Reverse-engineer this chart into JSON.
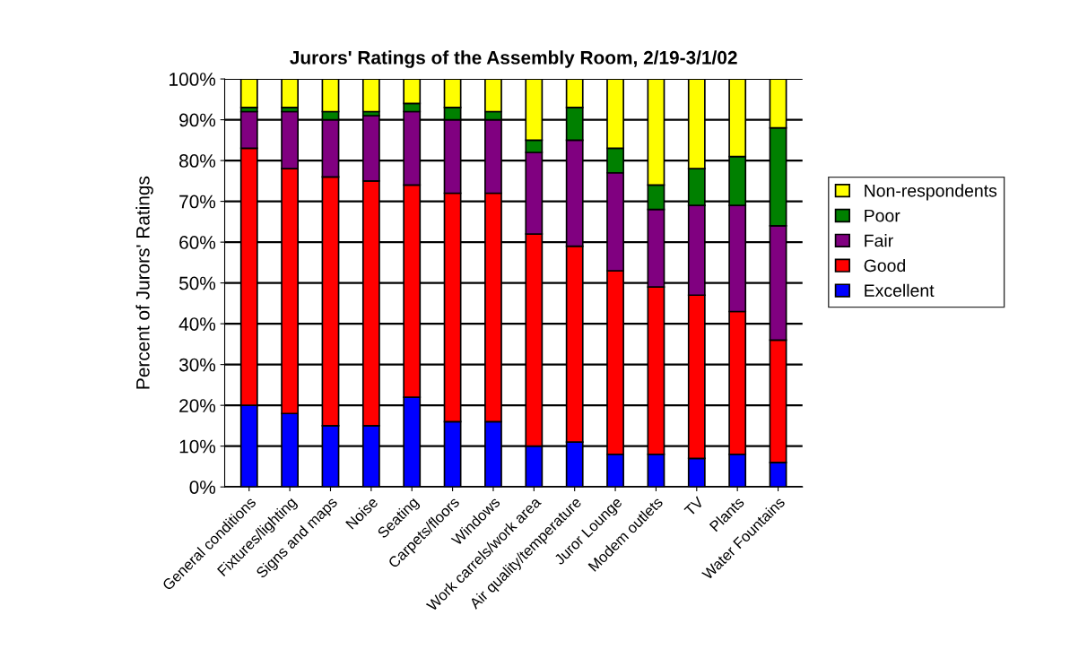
{
  "chart_data": {
    "type": "bar",
    "stacked": true,
    "title": "Jurors' Ratings of the Assembly Room, 2/19-3/1/02",
    "ylabel": "Percent of Jurors' Ratings",
    "categories": [
      "General conditions",
      "Fixtures/lighting",
      "Signs and maps",
      "Noise",
      "Seating",
      "Carpets/floors",
      "Windows",
      "Work carrels/work area",
      "Air quality/temperature",
      "Juror Lounge",
      "Modem outlets",
      "TV",
      "Plants",
      "Water Fountains"
    ],
    "series": [
      {
        "name": "Excellent",
        "color": "#0000ff",
        "values": [
          20,
          18,
          15,
          15,
          22,
          16,
          16,
          10,
          11,
          8,
          8,
          7,
          8,
          6
        ]
      },
      {
        "name": "Good",
        "color": "#ff0000",
        "values": [
          63,
          60,
          61,
          60,
          52,
          56,
          56,
          52,
          48,
          45,
          41,
          40,
          35,
          30
        ]
      },
      {
        "name": "Fair",
        "color": "#800080",
        "values": [
          9,
          14,
          14,
          16,
          18,
          18,
          18,
          20,
          26,
          24,
          19,
          22,
          26,
          28
        ]
      },
      {
        "name": "Poor",
        "color": "#008000",
        "values": [
          1,
          1,
          2,
          1,
          2,
          3,
          2,
          3,
          8,
          6,
          6,
          9,
          12,
          24
        ]
      },
      {
        "name": "Non-respondents",
        "color": "#ffff00",
        "values": [
          7,
          7,
          8,
          8,
          6,
          7,
          8,
          15,
          7,
          17,
          26,
          22,
          19,
          12
        ]
      }
    ],
    "ylim": [
      0,
      100
    ],
    "yticks": [
      {
        "value": 0,
        "label": "0%"
      },
      {
        "value": 10,
        "label": "10%"
      },
      {
        "value": 20,
        "label": "20%"
      },
      {
        "value": 30,
        "label": "30%"
      },
      {
        "value": 40,
        "label": "40%"
      },
      {
        "value": 50,
        "label": "50%"
      },
      {
        "value": 60,
        "label": "60%"
      },
      {
        "value": 70,
        "label": "70%"
      },
      {
        "value": 80,
        "label": "80%"
      },
      {
        "value": 90,
        "label": "90%"
      },
      {
        "value": 100,
        "label": "100%"
      }
    ],
    "grid": "y",
    "legend": "right"
  }
}
